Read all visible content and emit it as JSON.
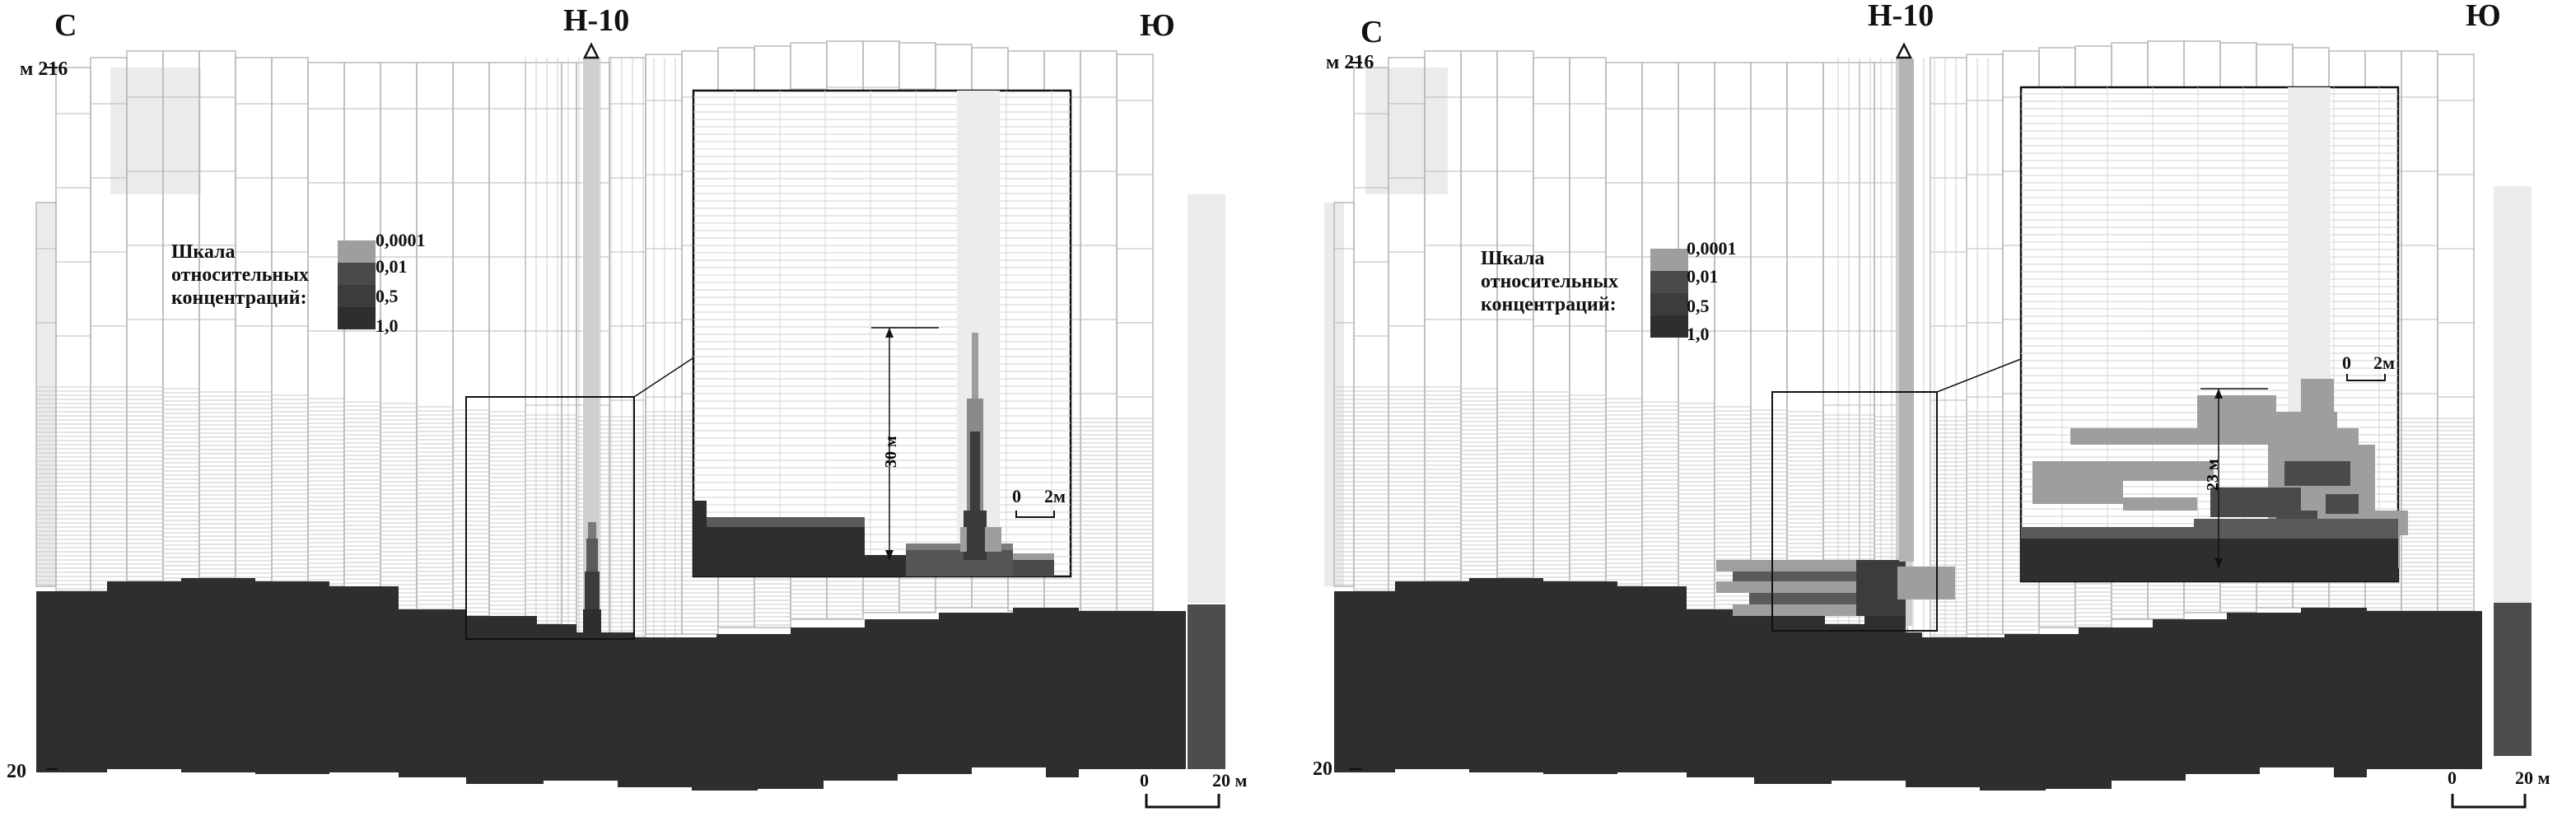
{
  "colors": {
    "background": "#ffffff",
    "cell_border": "#b8b8b8",
    "light_zone": "#ebebeb",
    "conc_0_0001": "#9e9e9e",
    "conc_0_01": "#4a4a4a",
    "conc_0_5": "#3c3c3c",
    "conc_1_0": "#2e2e2e",
    "well": "#cfcfcf"
  },
  "panels": [
    {
      "direction_north": "С",
      "direction_south": "Ю",
      "well_label": "Н-10",
      "well_marker": "triangle-icon",
      "depth_top": "м 216",
      "depth_bottom": "20",
      "legend": {
        "title_lines": [
          "Шкала",
          "относительных",
          "концентраций:"
        ],
        "values": [
          "0,0001",
          "0,01",
          "0,5",
          "1,0"
        ]
      },
      "inset_measure": "30 м",
      "inset_scale": {
        "zero": "0",
        "length": "2м"
      },
      "main_scale": {
        "zero": "0",
        "length": "20 м"
      }
    },
    {
      "direction_north": "С",
      "direction_south": "Ю",
      "well_label": "Н-10",
      "well_marker": "triangle-icon",
      "depth_top": "м 216",
      "depth_bottom": "20",
      "legend": {
        "title_lines": [
          "Шкала",
          "относительных",
          "концентраций:"
        ],
        "values": [
          "0,0001",
          "0,01",
          "0,5",
          "1,0"
        ]
      },
      "inset_measure": "23 м",
      "inset_scale": {
        "zero": "0",
        "length": "2м"
      },
      "main_scale": {
        "zero": "0",
        "length": "20 м"
      }
    }
  ]
}
